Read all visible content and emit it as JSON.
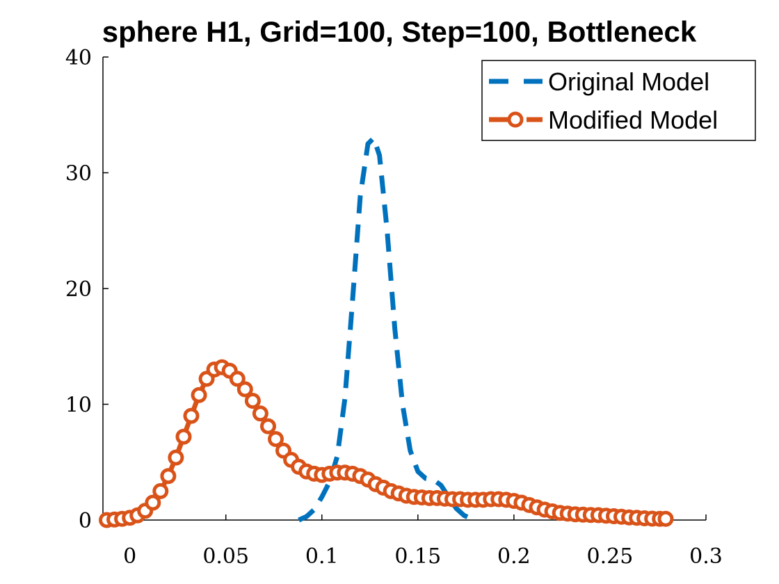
{
  "chart_data": {
    "type": "line",
    "title": "sphere H1, Grid=100, Step=100, Bottleneck",
    "xlabel": "",
    "ylabel": "",
    "xlim": [
      -0.014,
      0.3
    ],
    "ylim": [
      0,
      40
    ],
    "xticks": [
      0,
      0.05,
      0.1,
      0.15,
      0.2,
      0.25,
      0.3
    ],
    "yticks": [
      0,
      10,
      20,
      30,
      40
    ],
    "xtick_labels": [
      "0",
      "0.05",
      "0.1",
      "0.15",
      "0.2",
      "0.25",
      "0.3"
    ],
    "ytick_labels": [
      "0",
      "10",
      "20",
      "30",
      "40"
    ],
    "grid": false,
    "legend_position": "top-right",
    "series": [
      {
        "name": "Original Model",
        "style": "dashed",
        "color": "#0072BD",
        "x": [
          0.088,
          0.092,
          0.096,
          0.1,
          0.104,
          0.108,
          0.112,
          0.116,
          0.12,
          0.124,
          0.127,
          0.13,
          0.134,
          0.138,
          0.142,
          0.146,
          0.15,
          0.154,
          0.158,
          0.162,
          0.166,
          0.17,
          0.174,
          0.178
        ],
        "y": [
          0,
          0.3,
          0.9,
          2.0,
          3.3,
          5.5,
          10.5,
          19.0,
          28.0,
          32.5,
          33.0,
          31.5,
          25.0,
          16.5,
          10.0,
          6.0,
          4.2,
          3.6,
          3.5,
          3.0,
          2.0,
          1.0,
          0.4,
          0.1
        ]
      },
      {
        "name": "Modified Model",
        "style": "solid with circle markers",
        "color": "#D95319",
        "x": [
          -0.012,
          -0.008,
          -0.004,
          0.0,
          0.004,
          0.008,
          0.012,
          0.016,
          0.02,
          0.024,
          0.028,
          0.032,
          0.036,
          0.04,
          0.044,
          0.048,
          0.052,
          0.056,
          0.06,
          0.064,
          0.068,
          0.072,
          0.076,
          0.08,
          0.084,
          0.088,
          0.092,
          0.096,
          0.1,
          0.104,
          0.108,
          0.112,
          0.116,
          0.12,
          0.124,
          0.128,
          0.132,
          0.136,
          0.14,
          0.144,
          0.148,
          0.152,
          0.156,
          0.16,
          0.164,
          0.168,
          0.172,
          0.176,
          0.18,
          0.184,
          0.188,
          0.192,
          0.196,
          0.2,
          0.204,
          0.208,
          0.212,
          0.216,
          0.22,
          0.224,
          0.228,
          0.232,
          0.236,
          0.24,
          0.244,
          0.248,
          0.252,
          0.256,
          0.26,
          0.264,
          0.268,
          0.272,
          0.276,
          0.279
        ],
        "y": [
          0.0,
          0.05,
          0.1,
          0.2,
          0.4,
          0.8,
          1.5,
          2.5,
          3.8,
          5.4,
          7.2,
          9.0,
          10.8,
          12.2,
          13.0,
          13.2,
          12.9,
          12.2,
          11.3,
          10.3,
          9.2,
          8.1,
          7.0,
          6.0,
          5.2,
          4.6,
          4.2,
          4.0,
          3.9,
          4.0,
          4.1,
          4.1,
          4.0,
          3.8,
          3.5,
          3.1,
          2.8,
          2.5,
          2.3,
          2.1,
          2.0,
          1.95,
          1.9,
          1.9,
          1.85,
          1.8,
          1.8,
          1.75,
          1.75,
          1.75,
          1.8,
          1.8,
          1.75,
          1.65,
          1.5,
          1.3,
          1.1,
          0.9,
          0.75,
          0.62,
          0.55,
          0.5,
          0.47,
          0.44,
          0.42,
          0.38,
          0.33,
          0.28,
          0.23,
          0.19,
          0.15,
          0.12,
          0.1,
          0.1
        ]
      }
    ]
  }
}
